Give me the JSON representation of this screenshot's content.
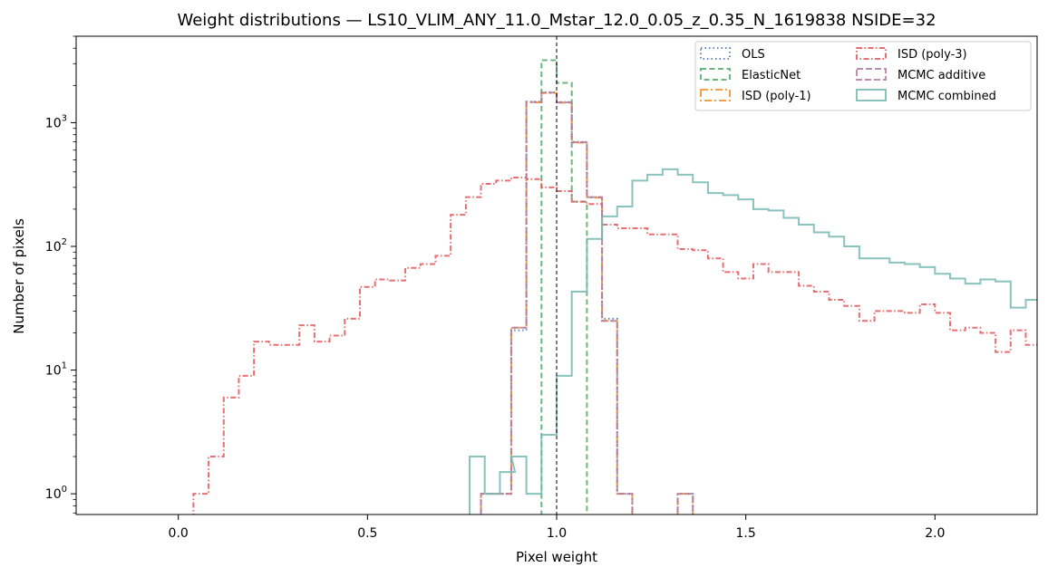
{
  "chart_data": {
    "type": "histogram",
    "title": "Weight distributions — LS10_VLIM_ANY_11.0_Mstar_12.0_0.05_z_0.35_N_1619838  NSIDE=32",
    "xlabel": "Pixel weight",
    "ylabel": "Number of pixels",
    "xlim": [
      -0.27,
      2.27
    ],
    "ylim": [
      0.68,
      5000
    ],
    "y_scale": "log",
    "x_ticks": [
      0.0,
      0.5,
      1.0,
      1.5,
      2.0
    ],
    "x_tick_labels": [
      "0.0",
      "0.5",
      "1.0",
      "1.5",
      "2.0"
    ],
    "y_ticks": [
      1,
      10,
      100,
      1000
    ],
    "y_tick_labels": [
      "10",
      "10",
      "10",
      "10"
    ],
    "y_tick_exponents": [
      "0",
      "1",
      "2",
      "3"
    ],
    "reference_line_x": 1.0,
    "legend_position": "top-right",
    "bin_width": 0.04,
    "series": [
      {
        "name": "OLS",
        "color": "#4c72b0",
        "dash": "1.5,3",
        "bins": [
          [
            0.8,
            1
          ],
          [
            0.84,
            1
          ],
          [
            0.88,
            21
          ],
          [
            0.92,
            1480
          ],
          [
            0.96,
            1760
          ],
          [
            1.0,
            1470
          ],
          [
            1.04,
            700
          ],
          [
            1.08,
            250
          ],
          [
            1.12,
            26
          ],
          [
            1.16,
            1
          ],
          [
            1.2,
            0
          ],
          [
            1.24,
            0
          ],
          [
            1.28,
            0
          ],
          [
            1.32,
            1
          ]
        ]
      },
      {
        "name": "ElasticNet",
        "color": "#55a868",
        "dash": "6,3.5",
        "bins": [
          [
            0.96,
            3200
          ],
          [
            1.0,
            2100
          ],
          [
            1.04,
            230
          ]
        ]
      },
      {
        "name": "ISD (poly-1)",
        "color": "#f28e2b",
        "dash": "8,3,2,3",
        "bins": [
          [
            0.8,
            1
          ],
          [
            0.84,
            1
          ],
          [
            0.88,
            22
          ],
          [
            0.92,
            1460
          ],
          [
            0.96,
            1740
          ],
          [
            1.0,
            1450
          ],
          [
            1.04,
            690
          ],
          [
            1.08,
            248
          ],
          [
            1.12,
            25
          ],
          [
            1.16,
            1
          ],
          [
            1.2,
            0
          ],
          [
            1.24,
            0
          ],
          [
            1.28,
            0
          ],
          [
            1.32,
            1
          ]
        ]
      },
      {
        "name": "ISD (poly-3)",
        "color": "#e15759",
        "dash": "6,2.5,1.5,2.5",
        "bins": [
          [
            0.04,
            1
          ],
          [
            0.08,
            2
          ],
          [
            0.12,
            6
          ],
          [
            0.16,
            9
          ],
          [
            0.2,
            17
          ],
          [
            0.24,
            16
          ],
          [
            0.28,
            16
          ],
          [
            0.32,
            23
          ],
          [
            0.36,
            17
          ],
          [
            0.4,
            19
          ],
          [
            0.44,
            26
          ],
          [
            0.48,
            47
          ],
          [
            0.52,
            54
          ],
          [
            0.56,
            53
          ],
          [
            0.6,
            67
          ],
          [
            0.64,
            72
          ],
          [
            0.68,
            84
          ],
          [
            0.72,
            180
          ],
          [
            0.76,
            250
          ],
          [
            0.8,
            320
          ],
          [
            0.84,
            340
          ],
          [
            0.88,
            360
          ],
          [
            0.92,
            350
          ],
          [
            0.96,
            300
          ],
          [
            1.0,
            280
          ],
          [
            1.04,
            230
          ],
          [
            1.08,
            220
          ],
          [
            1.12,
            150
          ],
          [
            1.16,
            140
          ],
          [
            1.2,
            140
          ],
          [
            1.24,
            125
          ],
          [
            1.28,
            125
          ],
          [
            1.32,
            95
          ],
          [
            1.36,
            93
          ],
          [
            1.4,
            80
          ],
          [
            1.44,
            62
          ],
          [
            1.48,
            55
          ],
          [
            1.52,
            72
          ],
          [
            1.56,
            62
          ],
          [
            1.6,
            62
          ],
          [
            1.64,
            48
          ],
          [
            1.68,
            43
          ],
          [
            1.72,
            37
          ],
          [
            1.76,
            33
          ],
          [
            1.8,
            25
          ],
          [
            1.84,
            30
          ],
          [
            1.88,
            30
          ],
          [
            1.92,
            29
          ],
          [
            1.96,
            34
          ],
          [
            2.0,
            29
          ],
          [
            2.04,
            21
          ],
          [
            2.08,
            22
          ],
          [
            2.12,
            20
          ],
          [
            2.16,
            14
          ],
          [
            2.2,
            21
          ],
          [
            2.24,
            16
          ]
        ]
      },
      {
        "name": "MCMC additive",
        "color": "#b07aa1",
        "dash": "7,3",
        "bins": [
          [
            0.8,
            1
          ],
          [
            0.84,
            1
          ],
          [
            0.88,
            22
          ],
          [
            0.92,
            1470
          ],
          [
            0.96,
            1750
          ],
          [
            1.0,
            1460
          ],
          [
            1.04,
            695
          ],
          [
            1.08,
            250
          ],
          [
            1.12,
            25
          ],
          [
            1.16,
            1
          ],
          [
            1.2,
            0
          ],
          [
            1.24,
            0
          ],
          [
            1.28,
            0
          ],
          [
            1.32,
            1
          ]
        ]
      },
      {
        "name": "MCMC combined",
        "color": "#76b7b2",
        "dash": "",
        "bins": [
          [
            0.77,
            2
          ],
          [
            0.81,
            1
          ],
          [
            0.85,
            1.5
          ],
          [
            0.88,
            2
          ],
          [
            0.92,
            1
          ],
          [
            0.96,
            3
          ],
          [
            1.0,
            9
          ],
          [
            1.04,
            43
          ],
          [
            1.08,
            115
          ],
          [
            1.12,
            175
          ],
          [
            1.16,
            210
          ],
          [
            1.2,
            340
          ],
          [
            1.24,
            380
          ],
          [
            1.28,
            420
          ],
          [
            1.32,
            380
          ],
          [
            1.36,
            330
          ],
          [
            1.4,
            270
          ],
          [
            1.44,
            260
          ],
          [
            1.48,
            240
          ],
          [
            1.52,
            200
          ],
          [
            1.56,
            195
          ],
          [
            1.6,
            170
          ],
          [
            1.64,
            150
          ],
          [
            1.68,
            130
          ],
          [
            1.72,
            120
          ],
          [
            1.76,
            100
          ],
          [
            1.8,
            80
          ],
          [
            1.84,
            80
          ],
          [
            1.88,
            74
          ],
          [
            1.92,
            72
          ],
          [
            1.96,
            68
          ],
          [
            2.0,
            60
          ],
          [
            2.04,
            55
          ],
          [
            2.08,
            50
          ],
          [
            2.12,
            54
          ],
          [
            2.16,
            52
          ],
          [
            2.2,
            32
          ],
          [
            2.24,
            37
          ]
        ]
      }
    ]
  }
}
